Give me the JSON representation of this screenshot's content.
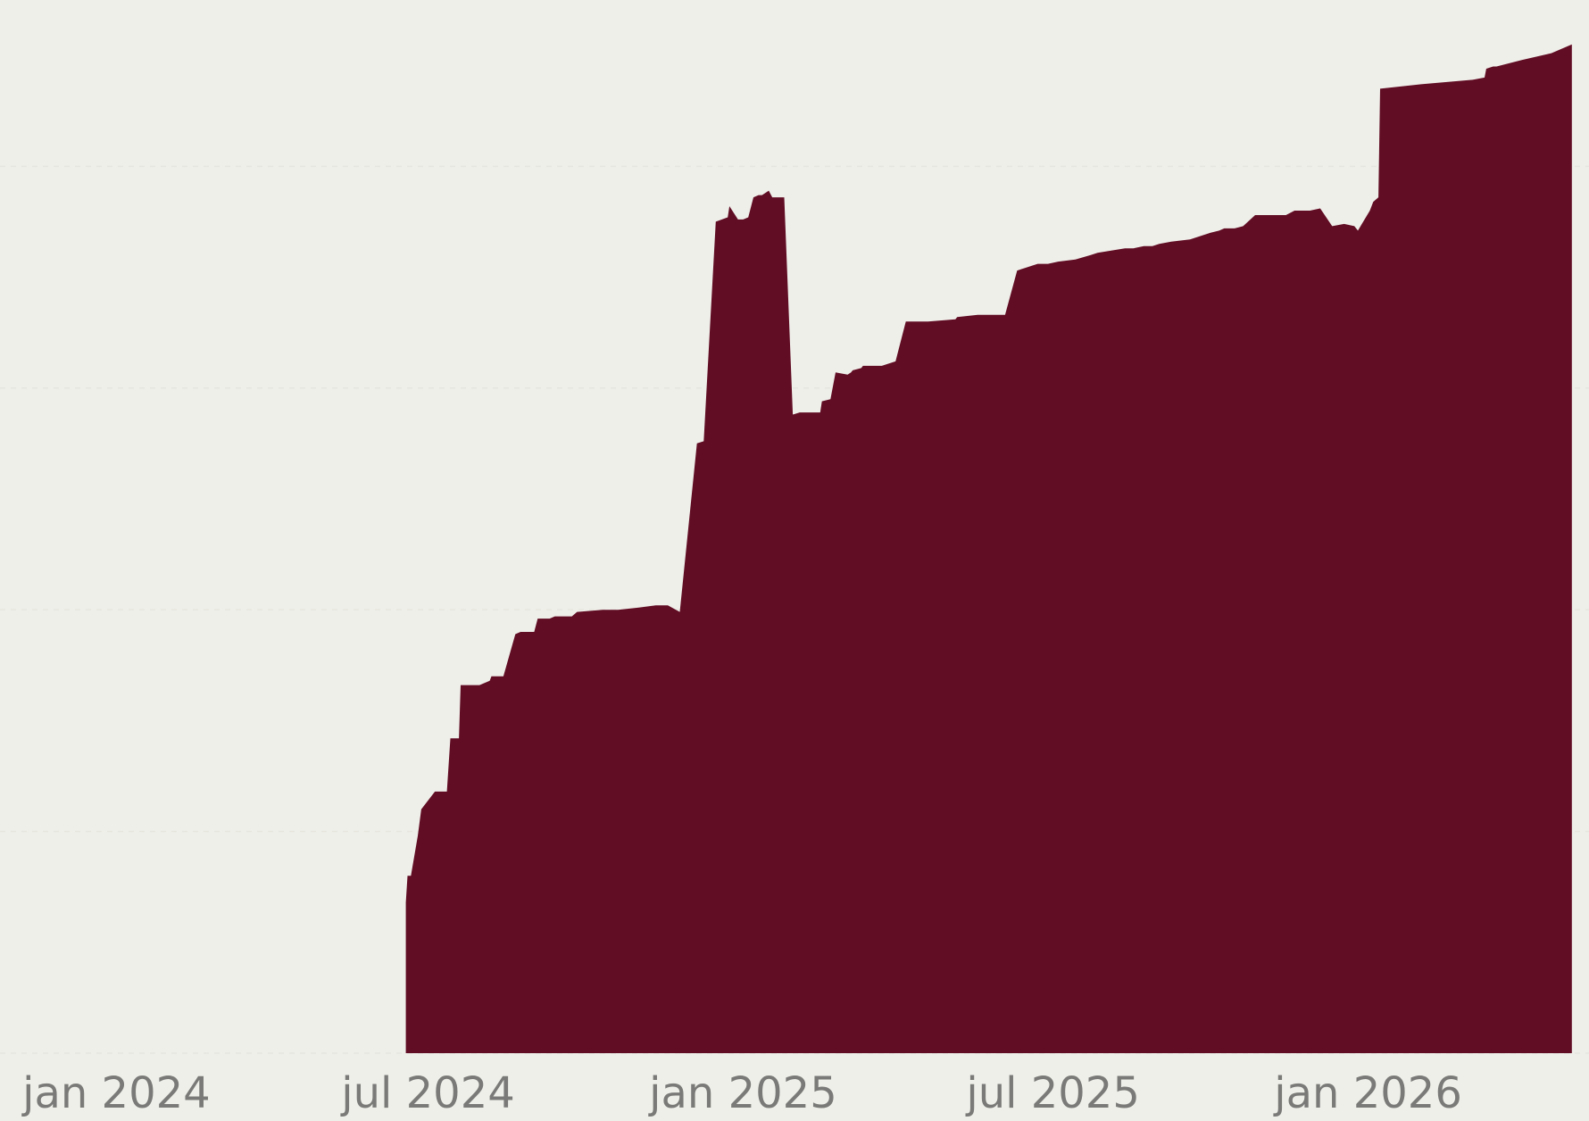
{
  "chart_data": {
    "type": "area",
    "title": "",
    "xlabel": "",
    "ylabel": "",
    "grid": true,
    "legend": "none",
    "fill_color": "#610d24",
    "background_color": "#efefea",
    "tick_label_color": "#7a7a78",
    "x_ticks": [
      {
        "date": "2024-01-01",
        "label": "jan 2024"
      },
      {
        "date": "2024-07-01",
        "label": "jul 2024"
      },
      {
        "date": "2025-01-01",
        "label": "jan 2025"
      },
      {
        "date": "2025-07-01",
        "label": "jul 2025"
      },
      {
        "date": "2026-01-01",
        "label": "jan 2026"
      }
    ],
    "xlim": [
      "2023-10-25",
      "2026-05-10"
    ],
    "ylim": [
      0,
      4.75
    ],
    "y_gridlines": [
      0,
      1,
      2,
      3,
      4
    ],
    "series": [
      {
        "x": [
          "2024-06-18",
          "2024-06-19",
          "2024-06-21",
          "2024-06-25",
          "2024-06-27",
          "2024-07-05",
          "2024-07-12",
          "2024-07-14",
          "2024-07-19",
          "2024-07-20",
          "2024-07-31",
          "2024-08-06",
          "2024-08-07",
          "2024-08-14",
          "2024-08-21",
          "2024-08-24",
          "2024-09-01",
          "2024-09-03",
          "2024-09-10",
          "2024-09-13",
          "2024-09-23",
          "2024-09-26",
          "2024-10-11",
          "2024-10-20",
          "2024-11-01",
          "2024-11-11",
          "2024-11-18",
          "2024-11-25",
          "2024-12-05",
          "2024-12-09",
          "2024-12-16",
          "2024-12-23",
          "2024-12-24",
          "2024-12-29",
          "2025-01-01",
          "2025-01-04",
          "2025-01-07",
          "2025-01-10",
          "2025-01-12",
          "2025-01-16",
          "2025-01-18",
          "2025-01-25",
          "2025-01-30",
          "2025-02-03",
          "2025-02-15",
          "2025-02-16",
          "2025-02-21",
          "2025-02-24",
          "2025-03-03",
          "2025-03-05",
          "2025-03-06",
          "2025-03-11",
          "2025-03-12",
          "2025-03-23",
          "2025-03-31",
          "2025-04-06",
          "2025-04-08",
          "2025-04-19",
          "2025-05-05",
          "2025-05-06",
          "2025-05-18",
          "2025-06-02",
          "2025-06-03",
          "2025-06-10",
          "2025-06-14",
          "2025-06-18",
          "2025-06-22",
          "2025-06-28",
          "2025-07-04",
          "2025-07-14",
          "2025-07-23",
          "2025-07-27",
          "2025-08-04",
          "2025-08-12",
          "2025-08-17",
          "2025-08-23",
          "2025-08-28",
          "2025-09-01",
          "2025-09-08",
          "2025-09-19",
          "2025-09-27",
          "2025-10-01",
          "2025-10-06",
          "2025-10-09",
          "2025-10-15",
          "2025-10-20",
          "2025-10-27",
          "2025-11-06",
          "2025-11-14",
          "2025-11-19",
          "2025-11-28",
          "2025-12-04",
          "2025-12-11",
          "2025-12-18",
          "2025-12-24",
          "2025-12-26",
          "2026-01-02",
          "2026-01-04",
          "2026-01-07",
          "2026-01-08",
          "2026-01-20",
          "2026-02-01",
          "2026-02-16",
          "2026-03-03",
          "2026-03-10",
          "2026-03-11",
          "2026-03-15",
          "2026-03-17",
          "2026-04-01",
          "2026-04-18",
          "2026-04-30"
        ],
        "values": [
          0.68,
          0.8,
          0.8,
          0.98,
          1.1,
          1.18,
          1.18,
          1.42,
          1.42,
          1.66,
          1.66,
          1.68,
          1.7,
          1.7,
          1.89,
          1.9,
          1.9,
          1.96,
          1.96,
          1.97,
          1.97,
          1.99,
          2.0,
          2.0,
          2.01,
          2.02,
          2.02,
          1.99,
          2.75,
          2.76,
          3.75,
          3.77,
          3.82,
          3.76,
          3.76,
          3.77,
          3.86,
          3.87,
          3.87,
          3.89,
          3.86,
          3.86,
          2.88,
          2.89,
          2.89,
          2.94,
          2.95,
          3.07,
          3.06,
          3.07,
          3.08,
          3.09,
          3.1,
          3.1,
          3.12,
          3.3,
          3.3,
          3.3,
          3.31,
          3.32,
          3.33,
          3.33,
          3.33,
          3.53,
          3.54,
          3.55,
          3.56,
          3.56,
          3.57,
          3.58,
          3.6,
          3.61,
          3.62,
          3.63,
          3.63,
          3.64,
          3.64,
          3.65,
          3.66,
          3.67,
          3.69,
          3.7,
          3.71,
          3.72,
          3.72,
          3.73,
          3.78,
          3.78,
          3.78,
          3.8,
          3.8,
          3.81,
          3.73,
          3.74,
          3.73,
          3.71,
          3.8,
          3.84,
          3.86,
          4.35,
          4.36,
          4.37,
          4.38,
          4.39,
          4.4,
          4.44,
          4.45,
          4.45,
          4.48,
          4.51,
          4.55
        ]
      }
    ]
  }
}
